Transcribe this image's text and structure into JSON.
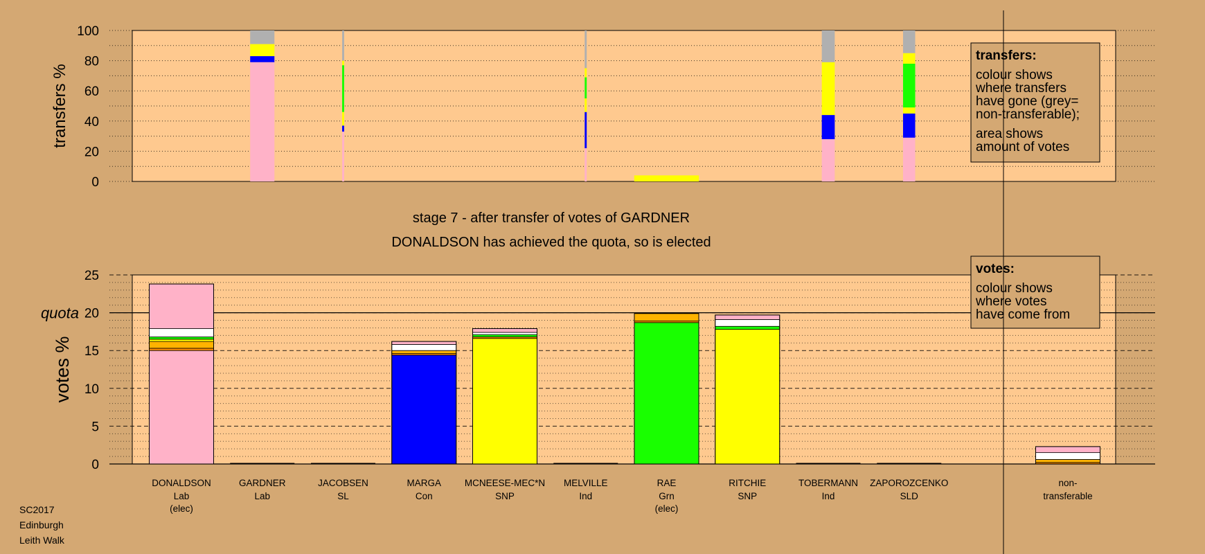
{
  "title_line1": "stage 7 - after transfer of votes of GARDNER",
  "title_line2": "DONALDSON has achieved the quota, so is elected",
  "footer": [
    "SC2017",
    "Edinburgh",
    "Leith Walk"
  ],
  "colors": {
    "background": "#d4a873",
    "plot_bg": "#fec98f",
    "Lab": "#ffb2c8",
    "SNP": "#ffff00",
    "Con": "#0000ff",
    "Grn": "#19ff00",
    "SL": "#ff8c00",
    "Ind": "#ffffff",
    "SLD": "#ffb300",
    "nontransferable": "#b0b0b0",
    "border": "#000000"
  },
  "top_box": {
    "heading": "transfers:",
    "text1": "colour shows\nwhere transfers\nhave gone (grey=\nnon-transferable);",
    "text2": "area shows\namount of votes"
  },
  "bottom_box": {
    "heading": "votes:",
    "text": "colour shows\nwhere votes\nhave come from"
  },
  "chart_data": [
    {
      "type": "bar",
      "ylabel": "transfers %",
      "ylim": [
        0,
        100
      ],
      "yticks": [
        0,
        20,
        40,
        60,
        80,
        100
      ],
      "bars": [
        {
          "column": 1,
          "share": 0.3,
          "segments": [
            {
              "party": "Lab",
              "value": 79
            },
            {
              "party": "Con",
              "value": 4
            },
            {
              "party": "SNP",
              "value": 8
            },
            {
              "party": "nontransferable",
              "value": 9
            }
          ]
        },
        {
          "column": 2,
          "share": 0.025,
          "segments": [
            {
              "party": "Lab",
              "value": 33
            },
            {
              "party": "Con",
              "value": 4
            },
            {
              "party": "SNP",
              "value": 9
            },
            {
              "party": "Grn",
              "value": 31
            },
            {
              "party": "SNP",
              "value": 3
            },
            {
              "party": "nontransferable",
              "value": 20
            }
          ]
        },
        {
          "column": 5,
          "share": 0.025,
          "segments": [
            {
              "party": "Lab",
              "value": 22
            },
            {
              "party": "Con",
              "value": 24
            },
            {
              "party": "SNP",
              "value": 9
            },
            {
              "party": "Grn",
              "value": 14
            },
            {
              "party": "SNP",
              "value": 6
            },
            {
              "party": "nontransferable",
              "value": 25
            }
          ]
        },
        {
          "column": 6,
          "share": 0.8,
          "segments": [
            {
              "party": "SNP",
              "value": 4
            }
          ]
        },
        {
          "column": 8,
          "share": 0.16,
          "segments": [
            {
              "party": "Lab",
              "value": 28
            },
            {
              "party": "Con",
              "value": 16
            },
            {
              "party": "SNP",
              "value": 35
            },
            {
              "party": "nontransferable",
              "value": 21
            }
          ]
        },
        {
          "column": 9,
          "share": 0.15,
          "segments": [
            {
              "party": "Lab",
              "value": 29
            },
            {
              "party": "Con",
              "value": 16
            },
            {
              "party": "SNP",
              "value": 4
            },
            {
              "party": "Grn",
              "value": 29
            },
            {
              "party": "SNP",
              "value": 7
            },
            {
              "party": "nontransferable",
              "value": 15
            }
          ]
        }
      ]
    },
    {
      "type": "bar",
      "ylabel": "votes %",
      "ylim": [
        0,
        25
      ],
      "yticks": [
        0,
        5,
        10,
        15,
        20,
        25
      ],
      "quota": 20,
      "quota_label": "quota",
      "categories": [
        {
          "name": "DONALDSON",
          "party": "Lab",
          "note": "(elec)"
        },
        {
          "name": "GARDNER",
          "party": "Lab",
          "note": ""
        },
        {
          "name": "JACOBSEN",
          "party": "SL",
          "note": ""
        },
        {
          "name": "MARGA",
          "party": "Con",
          "note": ""
        },
        {
          "name": "MCNEESE-MEC*N",
          "party": "SNP",
          "note": ""
        },
        {
          "name": "MELVILLE",
          "party": "Ind",
          "note": ""
        },
        {
          "name": "RAE",
          "party": "Grn",
          "note": "(elec)"
        },
        {
          "name": "RITCHIE",
          "party": "SNP",
          "note": ""
        },
        {
          "name": "TOBERMANN",
          "party": "Ind",
          "note": ""
        },
        {
          "name": "ZAPOROZCENKO",
          "party": "SLD",
          "note": ""
        }
      ],
      "nontransferable_label": [
        "non-",
        "transferable"
      ],
      "stacks": [
        [
          {
            "party": "Lab",
            "value": 15.0
          },
          {
            "party": "SL",
            "value": 0.3
          },
          {
            "party": "SLD",
            "value": 0.9
          },
          {
            "party": "SNP",
            "value": 0.3
          },
          {
            "party": "Grn",
            "value": 0.3
          },
          {
            "party": "Ind",
            "value": 1.1
          },
          {
            "party": "Lab",
            "value": 5.9
          }
        ],
        [],
        [],
        [
          {
            "party": "Con",
            "value": 14.4
          },
          {
            "party": "SL",
            "value": 0.2
          },
          {
            "party": "SLD",
            "value": 0.4
          },
          {
            "party": "Ind",
            "value": 0.8
          },
          {
            "party": "Lab",
            "value": 0.4
          }
        ],
        [
          {
            "party": "SNP",
            "value": 16.6
          },
          {
            "party": "SL",
            "value": 0.2
          },
          {
            "party": "Grn",
            "value": 0.3
          },
          {
            "party": "Ind",
            "value": 0.3
          },
          {
            "party": "Lab",
            "value": 0.5
          }
        ],
        [],
        [
          {
            "party": "Grn",
            "value": 18.7
          },
          {
            "party": "SL",
            "value": 0.2
          },
          {
            "party": "SLD",
            "value": 1.0
          }
        ],
        [
          {
            "party": "SNP",
            "value": 17.8
          },
          {
            "party": "Grn",
            "value": 0.4
          },
          {
            "party": "Ind",
            "value": 0.9
          },
          {
            "party": "Lab",
            "value": 0.6
          }
        ],
        [],
        [],
        [
          {
            "party": "SL",
            "value": 0.2
          },
          {
            "party": "SLD",
            "value": 0.4
          },
          {
            "party": "Ind",
            "value": 0.9
          },
          {
            "party": "Lab",
            "value": 0.8
          }
        ]
      ]
    }
  ]
}
